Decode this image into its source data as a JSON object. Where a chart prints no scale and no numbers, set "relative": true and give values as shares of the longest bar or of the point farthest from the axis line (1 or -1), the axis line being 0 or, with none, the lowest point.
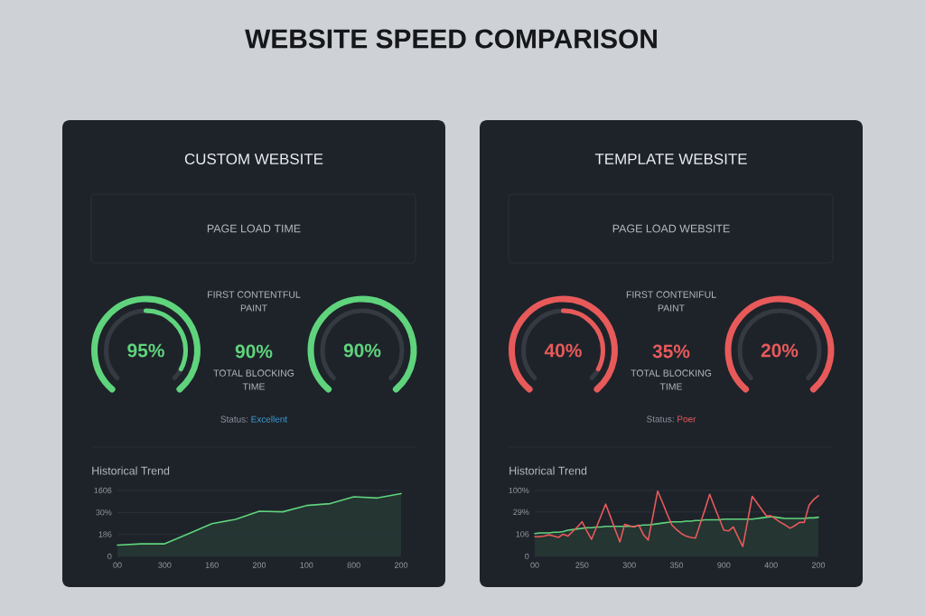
{
  "chart_data": [
    {
      "type": "other",
      "title": "WEBSITE SPEED COMPARISON"
    },
    {
      "type": "other",
      "title": "CUSTOM WEBSITE",
      "subtitle": "PAGE LOAD TIME",
      "color": "#5fd47c",
      "annotations": [
        "95%",
        "FIRST CONTENTFUL PAINT",
        "90%",
        "TOTAL BLOCKING TIME",
        "90%",
        "Status:",
        "Excellent"
      ]
    },
    {
      "type": "area",
      "title": "Historical Trend",
      "relative": true,
      "categories": [
        "00",
        null,
        "300",
        null,
        "160",
        null,
        "200",
        null,
        "100",
        null,
        "800",
        null,
        "200"
      ],
      "values": [
        0.18,
        0.2,
        0.2,
        0.36,
        0.52,
        0.59,
        0.72,
        0.71,
        0.81,
        0.84,
        0.95,
        0.93,
        1
      ],
      "color": "#5fd47c",
      "ref_lines": [
        {
          "axis": "y",
          "value": 1.05
        },
        {
          "axis": "y",
          "value": 0.7
        },
        {
          "axis": "y",
          "value": 0.35
        },
        {
          "axis": "y",
          "value": 0
        }
      ],
      "annotations": [
        "1606",
        "30%",
        "186",
        "0"
      ]
    },
    {
      "type": "other",
      "title": "TEMPLATE WEBSITE",
      "subtitle": "PAGE LOAD WEBSITE",
      "color": "#e85a5a",
      "annotations": [
        "40%",
        "FIRST CONTENIFUL PAINT",
        "35%",
        "TOTAL BLOCKING TIME",
        "20%",
        "Status:",
        "Poer"
      ]
    },
    {
      "type": "line",
      "title": "Historical Trend",
      "relative": true,
      "categories": [
        "00",
        null,
        null,
        null,
        null,
        null,
        null,
        null,
        null,
        null,
        "250",
        null,
        null,
        null,
        null,
        null,
        null,
        null,
        null,
        null,
        "300",
        null,
        null,
        null,
        null,
        null,
        null,
        null,
        null,
        null,
        "350",
        null,
        null,
        null,
        null,
        null,
        null,
        null,
        null,
        null,
        "900",
        null,
        null,
        null,
        null,
        null,
        null,
        null,
        null,
        null,
        "400",
        null,
        null,
        null,
        null,
        null,
        null,
        null,
        null,
        null,
        "200"
      ],
      "series": [
        {
          "type": "area",
          "color": "#5fd47c",
          "values": [
            0.35,
            0.36,
            0.36,
            0.36,
            0.37,
            0.37,
            0.38,
            0.4,
            0.41,
            0.42,
            0.43,
            0.44,
            0.44,
            0.45,
            0.45,
            0.46,
            0.46,
            0.46,
            0.46,
            0.46,
            0.46,
            0.46,
            0.47,
            0.48,
            0.48,
            0.49,
            0.5,
            0.51,
            0.52,
            0.53,
            0.53,
            0.53,
            0.54,
            0.54,
            0.55,
            0.55,
            0.56,
            0.56,
            0.56,
            0.56,
            0.57,
            0.57,
            0.57,
            0.57,
            0.57,
            0.57,
            0.57,
            0.58,
            0.59,
            0.6,
            0.61,
            0.6,
            0.59,
            0.58,
            0.58,
            0.58,
            0.58,
            0.58,
            0.59,
            0.59,
            0.6
          ]
        },
        {
          "color": "#e85a5a",
          "values": [
            0.3,
            0.3,
            0.31,
            0.33,
            0.31,
            0.29,
            0.34,
            0.31,
            0.38,
            0.45,
            0.53,
            0.39,
            0.26,
            0.44,
            0.62,
            0.8,
            0.61,
            0.41,
            0.22,
            0.49,
            0.47,
            0.45,
            0.48,
            0.33,
            0.25,
            0.62,
            1,
            0.83,
            0.65,
            0.48,
            0.41,
            0.35,
            0.31,
            0.29,
            0.28,
            0.5,
            0.72,
            0.95,
            0.76,
            0.58,
            0.4,
            0.39,
            0.45,
            0.3,
            0.15,
            0.53,
            0.92,
            0.82,
            0.72,
            0.62,
            0.62,
            0.57,
            0.52,
            0.48,
            0.43,
            0.47,
            0.52,
            0.52,
            0.78,
            0.87,
            0.93
          ]
        }
      ],
      "ref_lines": [
        {
          "axis": "y",
          "value": 1.01
        },
        {
          "axis": "y",
          "value": 0.68
        },
        {
          "axis": "y",
          "value": 0.34
        },
        {
          "axis": "y",
          "value": 0
        }
      ],
      "annotations": [
        "100%",
        "29%",
        "106",
        "0"
      ]
    }
  ]
}
